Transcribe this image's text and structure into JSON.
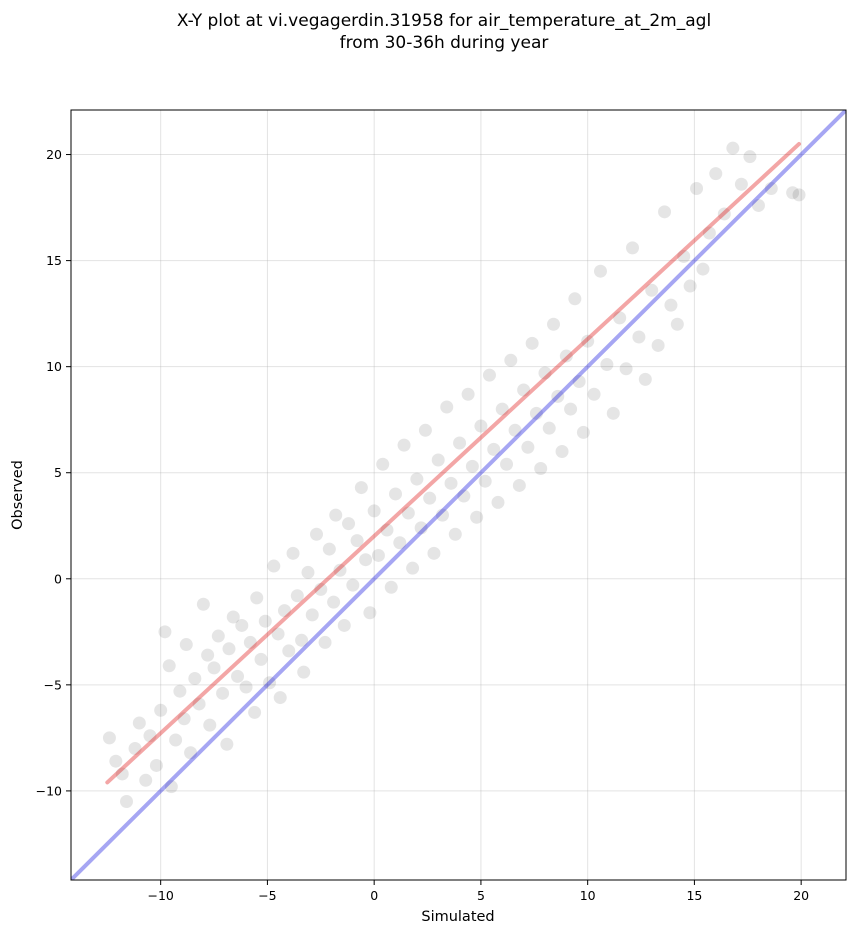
{
  "chart_data": {
    "type": "scatter",
    "title_line1": "X-Y plot at vi.vegagerdin.31958 for air_temperature_at_2m_agl",
    "title_line2": "from 30-36h during year",
    "xlabel": "Simulated",
    "ylabel": "Observed",
    "xlim": [
      -14.2,
      22.1
    ],
    "ylim": [
      -14.2,
      22.1
    ],
    "xticks": [
      -10,
      -5,
      0,
      5,
      10,
      15,
      20
    ],
    "yticks": [
      -10,
      -5,
      0,
      5,
      10,
      15,
      20
    ],
    "xtick_labels": [
      "−10",
      "−5",
      "0",
      "5",
      "10",
      "15",
      "20"
    ],
    "ytick_labels": [
      "−10",
      "−5",
      "0",
      "5",
      "10",
      "15",
      "20"
    ],
    "grid": true,
    "points_color": "#000000",
    "reference_line": {
      "name": "1:1",
      "color": "#0000dd",
      "points": [
        [
          -14.2,
          -14.2
        ],
        [
          22.1,
          22.1
        ]
      ]
    },
    "fit_line": {
      "color": "#dd0000",
      "points": [
        [
          -12.5,
          -9.6
        ],
        [
          19.9,
          20.5
        ]
      ]
    },
    "series": [
      {
        "points": [
          [
            -12.4,
            -7.5
          ],
          [
            -12.1,
            -8.6
          ],
          [
            -11.8,
            -9.2
          ],
          [
            -11.6,
            -10.5
          ],
          [
            -11.2,
            -8.0
          ],
          [
            -11.0,
            -6.8
          ],
          [
            -10.7,
            -9.5
          ],
          [
            -10.5,
            -7.4
          ],
          [
            -10.2,
            -8.8
          ],
          [
            -10.0,
            -6.2
          ],
          [
            -9.8,
            -2.5
          ],
          [
            -9.6,
            -4.1
          ],
          [
            -9.5,
            -9.8
          ],
          [
            -9.3,
            -7.6
          ],
          [
            -9.1,
            -5.3
          ],
          [
            -8.9,
            -6.6
          ],
          [
            -8.8,
            -3.1
          ],
          [
            -8.6,
            -8.2
          ],
          [
            -8.4,
            -4.7
          ],
          [
            -8.2,
            -5.9
          ],
          [
            -8.0,
            -1.2
          ],
          [
            -7.8,
            -3.6
          ],
          [
            -7.7,
            -6.9
          ],
          [
            -7.5,
            -4.2
          ],
          [
            -7.3,
            -2.7
          ],
          [
            -7.1,
            -5.4
          ],
          [
            -6.9,
            -7.8
          ],
          [
            -6.8,
            -3.3
          ],
          [
            -6.6,
            -1.8
          ],
          [
            -6.4,
            -4.6
          ],
          [
            -6.2,
            -2.2
          ],
          [
            -6.0,
            -5.1
          ],
          [
            -5.8,
            -3.0
          ],
          [
            -5.6,
            -6.3
          ],
          [
            -5.5,
            -0.9
          ],
          [
            -5.3,
            -3.8
          ],
          [
            -5.1,
            -2.0
          ],
          [
            -4.9,
            -4.9
          ],
          [
            -4.7,
            0.6
          ],
          [
            -4.5,
            -2.6
          ],
          [
            -4.4,
            -5.6
          ],
          [
            -4.2,
            -1.5
          ],
          [
            -4.0,
            -3.4
          ],
          [
            -3.8,
            1.2
          ],
          [
            -3.6,
            -0.8
          ],
          [
            -3.4,
            -2.9
          ],
          [
            -3.3,
            -4.4
          ],
          [
            -3.1,
            0.3
          ],
          [
            -2.9,
            -1.7
          ],
          [
            -2.7,
            2.1
          ],
          [
            -2.5,
            -0.5
          ],
          [
            -2.3,
            -3.0
          ],
          [
            -2.1,
            1.4
          ],
          [
            -1.9,
            -1.1
          ],
          [
            -1.8,
            3.0
          ],
          [
            -1.6,
            0.4
          ],
          [
            -1.4,
            -2.2
          ],
          [
            -1.2,
            2.6
          ],
          [
            -1.0,
            -0.3
          ],
          [
            -0.8,
            1.8
          ],
          [
            -0.6,
            4.3
          ],
          [
            -0.4,
            0.9
          ],
          [
            -0.2,
            -1.6
          ],
          [
            0.0,
            3.2
          ],
          [
            0.2,
            1.1
          ],
          [
            0.4,
            5.4
          ],
          [
            0.6,
            2.3
          ],
          [
            0.8,
            -0.4
          ],
          [
            1.0,
            4.0
          ],
          [
            1.2,
            1.7
          ],
          [
            1.4,
            6.3
          ],
          [
            1.6,
            3.1
          ],
          [
            1.8,
            0.5
          ],
          [
            2.0,
            4.7
          ],
          [
            2.2,
            2.4
          ],
          [
            2.4,
            7.0
          ],
          [
            2.6,
            3.8
          ],
          [
            2.8,
            1.2
          ],
          [
            3.0,
            5.6
          ],
          [
            3.2,
            3.0
          ],
          [
            3.4,
            8.1
          ],
          [
            3.6,
            4.5
          ],
          [
            3.8,
            2.1
          ],
          [
            4.0,
            6.4
          ],
          [
            4.2,
            3.9
          ],
          [
            4.4,
            8.7
          ],
          [
            4.6,
            5.3
          ],
          [
            4.8,
            2.9
          ],
          [
            5.0,
            7.2
          ],
          [
            5.2,
            4.6
          ],
          [
            5.4,
            9.6
          ],
          [
            5.6,
            6.1
          ],
          [
            5.8,
            3.6
          ],
          [
            6.0,
            8.0
          ],
          [
            6.2,
            5.4
          ],
          [
            6.4,
            10.3
          ],
          [
            6.6,
            7.0
          ],
          [
            6.8,
            4.4
          ],
          [
            7.0,
            8.9
          ],
          [
            7.2,
            6.2
          ],
          [
            7.4,
            11.1
          ],
          [
            7.6,
            7.8
          ],
          [
            7.8,
            5.2
          ],
          [
            8.0,
            9.7
          ],
          [
            8.2,
            7.1
          ],
          [
            8.4,
            12.0
          ],
          [
            8.6,
            8.6
          ],
          [
            8.8,
            6.0
          ],
          [
            9.0,
            10.5
          ],
          [
            9.2,
            8.0
          ],
          [
            9.4,
            13.2
          ],
          [
            9.6,
            9.3
          ],
          [
            9.8,
            6.9
          ],
          [
            10.0,
            11.2
          ],
          [
            10.3,
            8.7
          ],
          [
            10.6,
            14.5
          ],
          [
            10.9,
            10.1
          ],
          [
            11.2,
            7.8
          ],
          [
            11.5,
            12.3
          ],
          [
            11.8,
            9.9
          ],
          [
            12.1,
            15.6
          ],
          [
            12.4,
            11.4
          ],
          [
            12.7,
            9.4
          ],
          [
            13.0,
            13.6
          ],
          [
            13.3,
            11.0
          ],
          [
            13.6,
            17.3
          ],
          [
            13.9,
            12.9
          ],
          [
            14.2,
            12.0
          ],
          [
            14.5,
            15.2
          ],
          [
            14.8,
            13.8
          ],
          [
            15.1,
            18.4
          ],
          [
            15.4,
            14.6
          ],
          [
            15.7,
            16.3
          ],
          [
            16.0,
            19.1
          ],
          [
            16.4,
            17.2
          ],
          [
            16.8,
            20.3
          ],
          [
            17.2,
            18.6
          ],
          [
            17.6,
            19.9
          ],
          [
            18.0,
            17.6
          ],
          [
            18.6,
            18.4
          ],
          [
            19.6,
            18.2
          ],
          [
            19.9,
            18.1
          ]
        ]
      }
    ]
  }
}
